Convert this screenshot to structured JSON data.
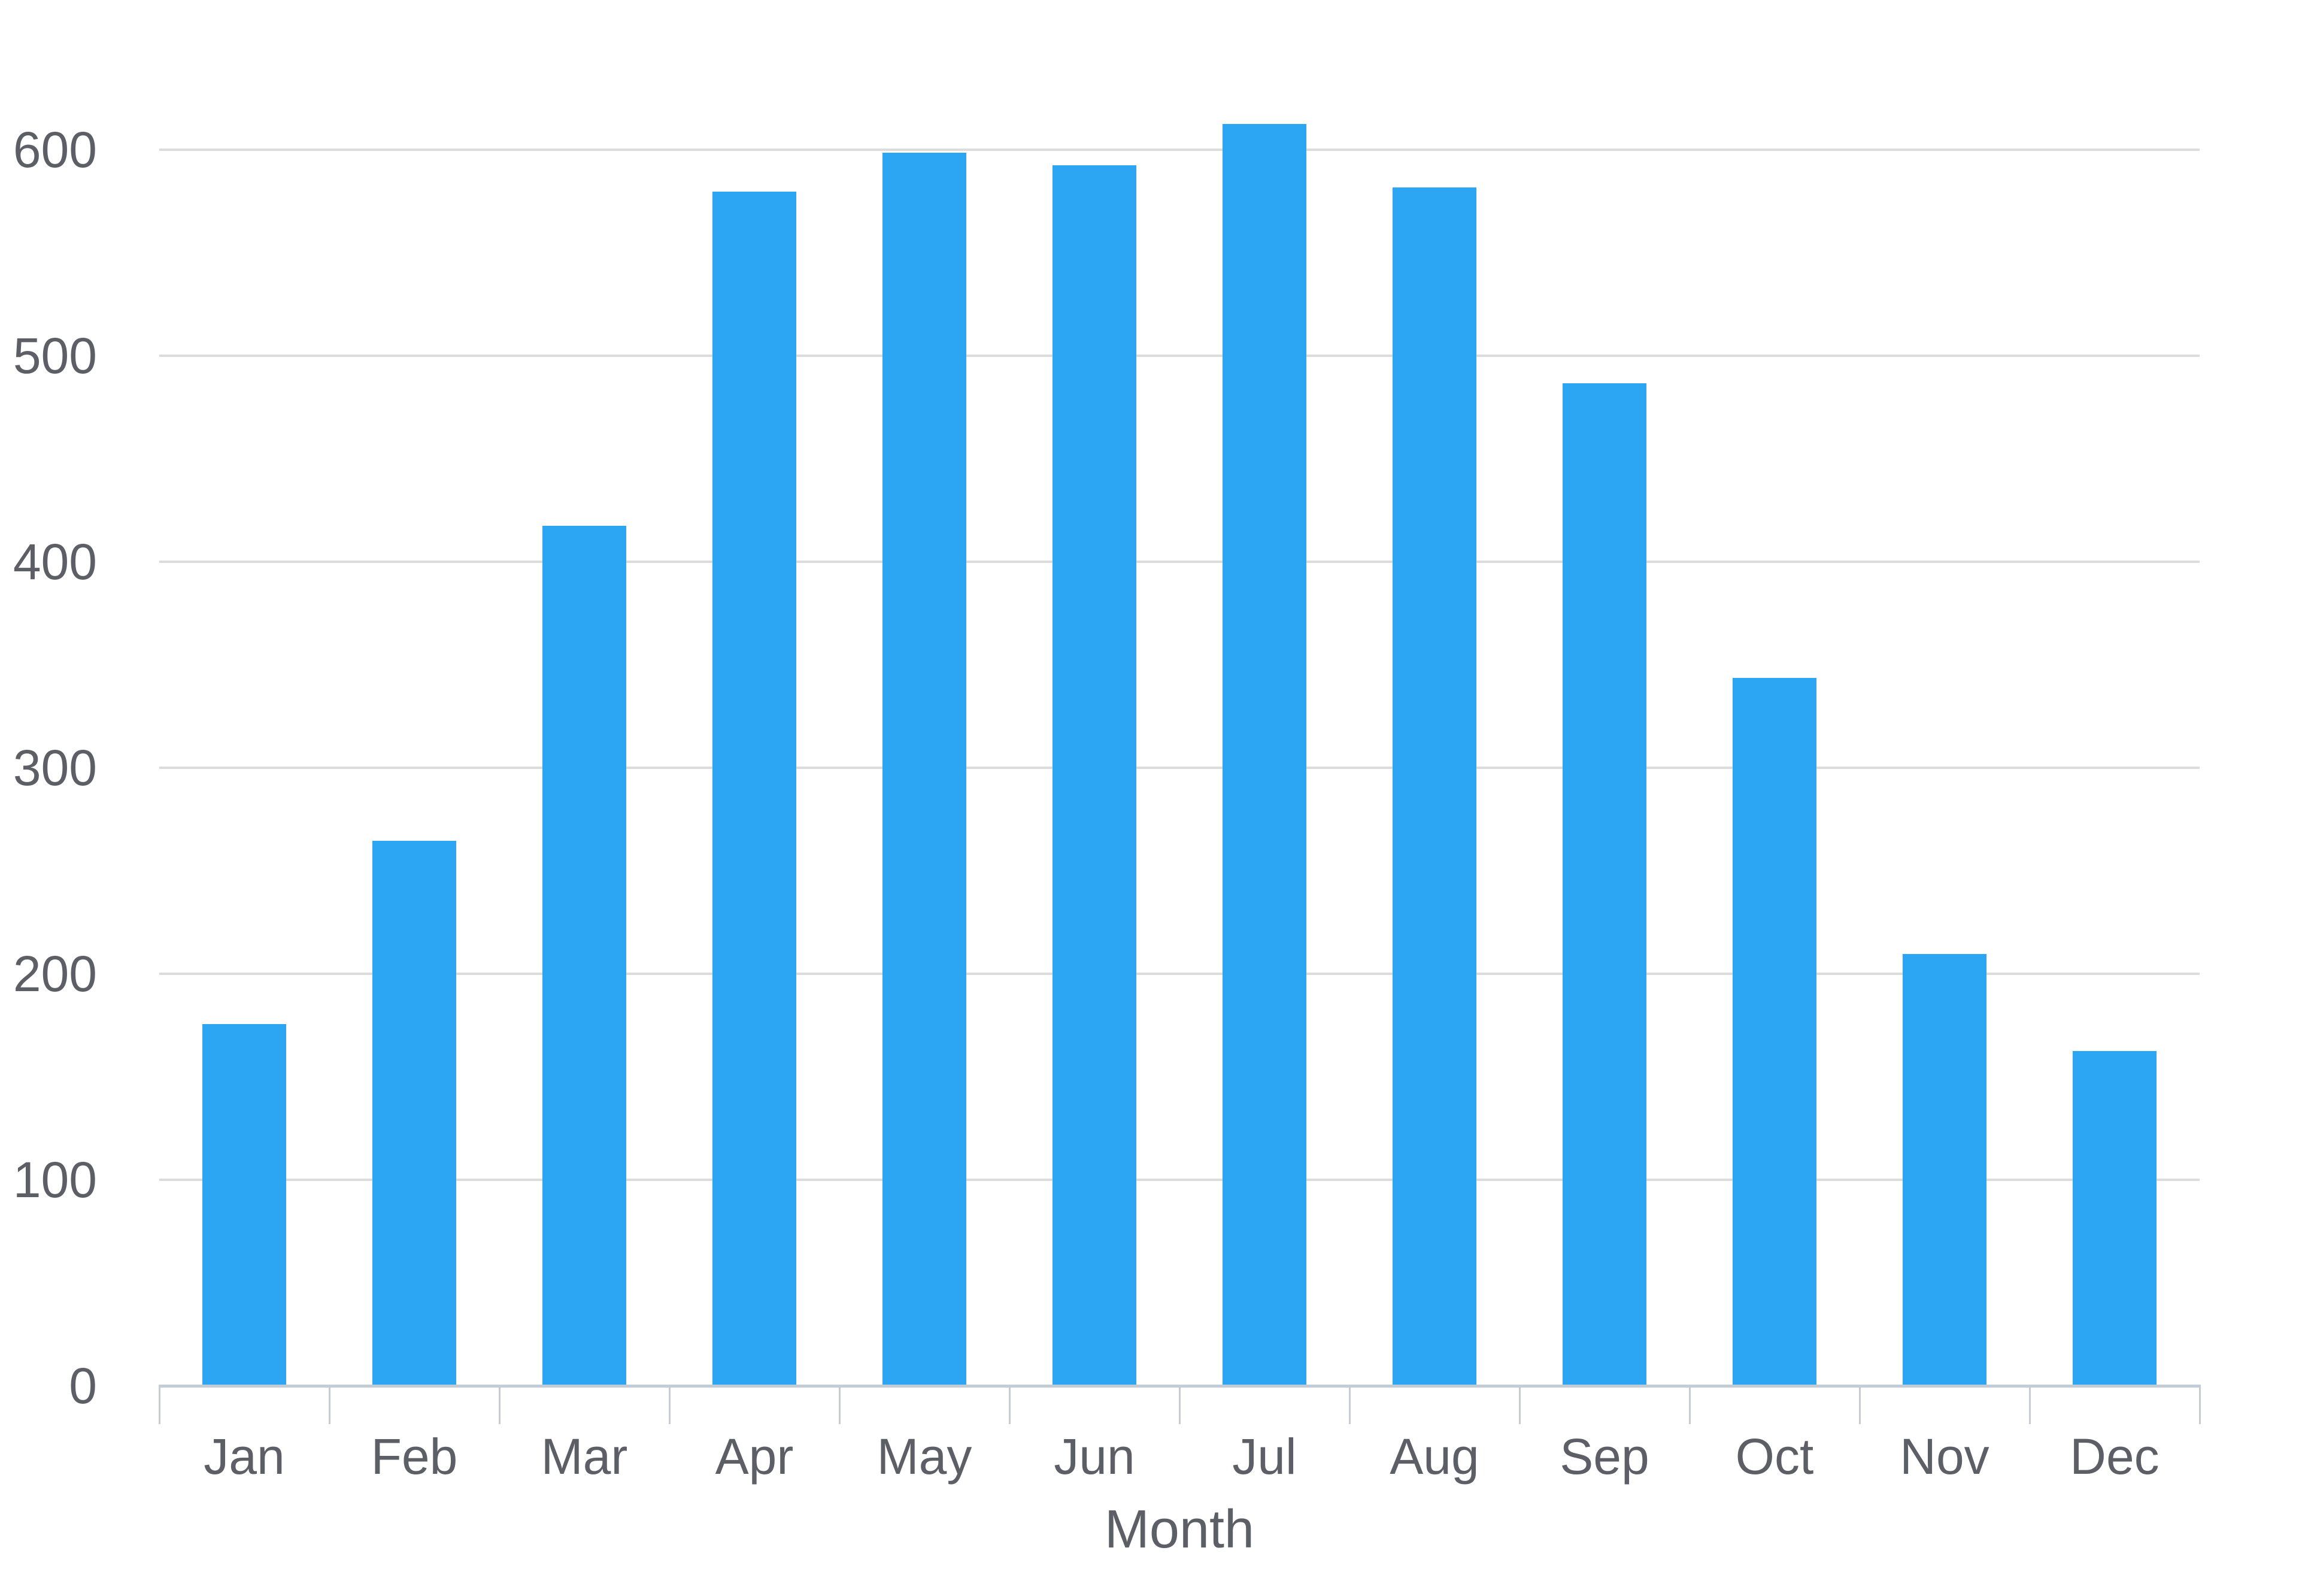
{
  "chart_data": {
    "type": "bar",
    "title": "",
    "categories": [
      "Jan",
      "Feb",
      "Mar",
      "Apr",
      "May",
      "Jun",
      "Jul",
      "Aug",
      "Sep",
      "Oct",
      "Nov",
      "Dec"
    ],
    "values": [
      175,
      264,
      417,
      579,
      598,
      592,
      612,
      581,
      486,
      343,
      209,
      162
    ],
    "xlabel": "Month",
    "ylabel": "",
    "y_ticks": [
      0,
      100,
      200,
      300,
      400,
      500,
      600
    ],
    "ylim": [
      0,
      650
    ],
    "grid": "horizontal-only",
    "legend": "none",
    "colors": {
      "bar": "#2CA5F2",
      "gridline": "#DCDCDC",
      "axis_line": "#C3CDD8",
      "tick_mark": "#C3CDD8",
      "label_text": "#5C6066",
      "background": "#FFFFFF"
    }
  }
}
